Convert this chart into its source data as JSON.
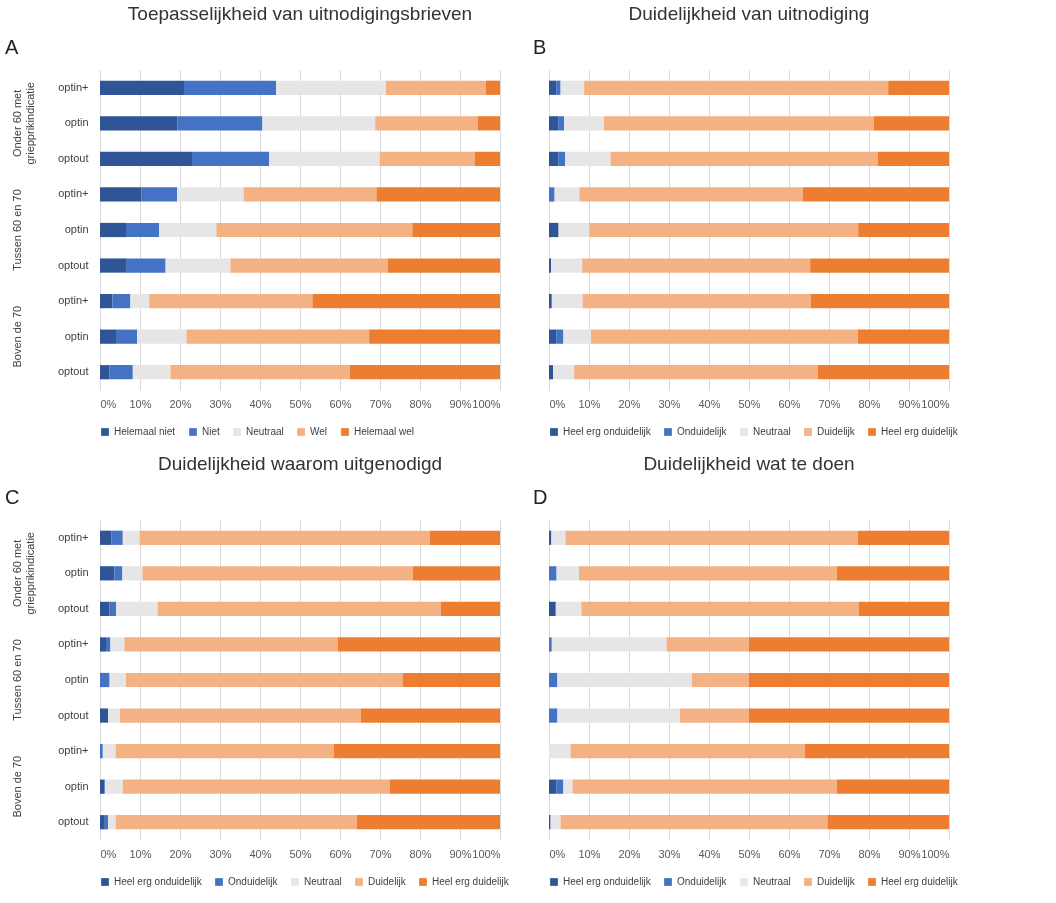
{
  "chart_data": [
    {
      "type": "bar",
      "orientation": "horizontal",
      "stacked": true,
      "title": "Toepasselijkheid van uitnodigingsbrieven",
      "annotations": [
        "A",
        "Onder 60 met griepprikindicatie",
        "Tussen 60 en 70",
        "Boven de 70"
      ],
      "categories": [
        "optin+",
        "optin",
        "optout",
        "optin+",
        "optin",
        "optout",
        "optin+",
        "optin",
        "optout"
      ],
      "series": [
        {
          "name": "Helemaal niet",
          "color": "#2f5597",
          "values": [
            21,
            19.4,
            23,
            10.3,
            6.5,
            6.7,
            3.1,
            4,
            2.4
          ]
        },
        {
          "name": "Niet",
          "color": "#4472c4",
          "values": [
            23,
            21.2,
            19.3,
            9,
            8.3,
            9.7,
            4.5,
            5.3,
            5.8
          ]
        },
        {
          "name": "Neutraal",
          "color": "#e7e6e6",
          "values": [
            27.5,
            28.2,
            27.6,
            16.6,
            14.3,
            16.2,
            4.7,
            12.3,
            9.4
          ]
        },
        {
          "name": "Wel",
          "color": "#f4b183",
          "values": [
            25,
            25.7,
            23.8,
            33.2,
            49,
            39.4,
            40.8,
            45.7,
            44.8
          ]
        },
        {
          "name": "Helemaal wel",
          "color": "#ed7d31",
          "values": [
            3.5,
            5.5,
            6.3,
            30.9,
            21.9,
            28,
            46.9,
            32.7,
            37.6
          ]
        }
      ],
      "xlim": [
        0,
        100
      ],
      "xticks": [
        {
          "value": 0,
          "label": "0%"
        },
        {
          "value": 10,
          "label": "10%"
        },
        {
          "value": 20,
          "label": "20%"
        },
        {
          "value": 30,
          "label": "30%"
        },
        {
          "value": 40,
          "label": "40%"
        },
        {
          "value": 50,
          "label": "50%"
        },
        {
          "value": 60,
          "label": "60%"
        },
        {
          "value": 70,
          "label": "70%"
        },
        {
          "value": 80,
          "label": "80%"
        },
        {
          "value": 90,
          "label": "90%"
        },
        {
          "value": 100,
          "label": "100%"
        }
      ],
      "grid": "x",
      "legend": "bottom"
    },
    {
      "type": "bar",
      "orientation": "horizontal",
      "stacked": true,
      "title": "Duidelijkheid van uitnodiging",
      "annotations": [
        "B"
      ],
      "categories": [
        null,
        null,
        null,
        null,
        null,
        null,
        null,
        null,
        null
      ],
      "series": [
        {
          "name": "Heel erg onduidelijk",
          "color": "#2f5597",
          "values": [
            1.8,
            2.3,
            2.3,
            0,
            2.4,
            0.5,
            0.7,
            1.8,
            1
          ]
        },
        {
          "name": "Onduidelijk",
          "color": "#4472c4",
          "values": [
            1.1,
            1.5,
            1.7,
            1.4,
            0,
            0,
            0,
            1.8,
            0
          ]
        },
        {
          "name": "Neutraal",
          "color": "#e7e6e6",
          "values": [
            5.9,
            9.9,
            11.4,
            6.2,
            7.7,
            7.8,
            7.7,
            6.9,
            5.3
          ]
        },
        {
          "name": "Duidelijk",
          "color": "#f4b183",
          "values": [
            76,
            67.5,
            66.8,
            55.8,
            67.2,
            57,
            57,
            66.7,
            60.9
          ]
        },
        {
          "name": "Heel erg duidelijk",
          "color": "#ed7d31",
          "values": [
            15.2,
            18.8,
            17.8,
            36.6,
            22.7,
            34.7,
            34.6,
            22.8,
            32.8
          ]
        }
      ],
      "xlim": [
        0,
        100
      ],
      "xticks": [
        {
          "value": 0,
          "label": "0%"
        },
        {
          "value": 10,
          "label": "10%"
        },
        {
          "value": 20,
          "label": "20%"
        },
        {
          "value": 30,
          "label": "30%"
        },
        {
          "value": 40,
          "label": "40%"
        },
        {
          "value": 50,
          "label": "50%"
        },
        {
          "value": 60,
          "label": "60%"
        },
        {
          "value": 70,
          "label": "70%"
        },
        {
          "value": 80,
          "label": "80%"
        },
        {
          "value": 90,
          "label": "90%"
        },
        {
          "value": 100,
          "label": "100%"
        }
      ],
      "grid": "x",
      "legend": "bottom",
      "tick_labels": "x"
    },
    {
      "type": "bar",
      "orientation": "horizontal",
      "stacked": true,
      "title": "Duidelijkheid waarom uitgenodigd",
      "annotations": [
        "C",
        "Onder 60 met griepprikindicatie",
        "Tussen 60 en 70",
        "Boven de 70"
      ],
      "categories": [
        "optin+",
        "optin",
        "optout",
        "optin+",
        "optin",
        "optout",
        "optin+",
        "optin",
        "optout"
      ],
      "series": [
        {
          "name": "Heel erg onduidelijk",
          "color": "#2f5597",
          "values": [
            2.9,
            3.6,
            2.3,
            1.5,
            0,
            2,
            0,
            1.2,
            1.2
          ]
        },
        {
          "name": "Onduidelijk",
          "color": "#4472c4",
          "values": [
            2.8,
            2,
            1.7,
            1.1,
            2.4,
            0,
            0.7,
            0,
            0.8
          ]
        },
        {
          "name": "Neutraal",
          "color": "#e7e6e6",
          "values": [
            4.2,
            5,
            10.4,
            3.5,
            4.1,
            3,
            3.2,
            4.5,
            1.9
          ]
        },
        {
          "name": "Duidelijk",
          "color": "#f4b183",
          "values": [
            72.5,
            67.6,
            70.8,
            53.3,
            69.2,
            60.2,
            54.6,
            66.8,
            60.3
          ]
        },
        {
          "name": "Heel erg duidelijk",
          "color": "#ed7d31",
          "values": [
            17.6,
            21.8,
            14.8,
            40.6,
            24.3,
            34.8,
            41.5,
            27.5,
            35.8
          ]
        }
      ],
      "xlim": [
        0,
        100
      ],
      "xticks": [
        {
          "value": 0,
          "label": "0%"
        },
        {
          "value": 10,
          "label": "10%"
        },
        {
          "value": 20,
          "label": "20%"
        },
        {
          "value": 30,
          "label": "30%"
        },
        {
          "value": 40,
          "label": "40%"
        },
        {
          "value": 50,
          "label": "50%"
        },
        {
          "value": 60,
          "label": "60%"
        },
        {
          "value": 70,
          "label": "70%"
        },
        {
          "value": 80,
          "label": "80%"
        },
        {
          "value": 90,
          "label": "90%"
        },
        {
          "value": 100,
          "label": "100%"
        }
      ],
      "grid": "x",
      "legend": "bottom"
    },
    {
      "type": "bar",
      "orientation": "horizontal",
      "stacked": true,
      "title": "Duidelijkheid wat te doen",
      "annotations": [
        "D"
      ],
      "categories": [
        null,
        null,
        null,
        null,
        null,
        null,
        null,
        null,
        null
      ],
      "series": [
        {
          "name": "Heel erg onduidelijk",
          "color": "#2f5597",
          "values": [
            0.6,
            0,
            1.7,
            0,
            0,
            0,
            0,
            1.9,
            0.4
          ]
        },
        {
          "name": "Onduidelijk",
          "color": "#4472c4",
          "values": [
            0,
            1.9,
            0,
            0.7,
            2.1,
            2.1,
            0,
            1.7,
            0
          ]
        },
        {
          "name": "Neutraal",
          "color": "#e7e6e6",
          "values": [
            3.5,
            5.6,
            6.4,
            28.7,
            33.6,
            30.6,
            5.4,
            2.3,
            2.5
          ]
        },
        {
          "name": "Duidelijk",
          "color": "#f4b183",
          "values": [
            73.1,
            64.4,
            69.4,
            20.6,
            14.3,
            17.3,
            58.5,
            66.1,
            66.7
          ]
        },
        {
          "name": "Heel erg duidelijk",
          "color": "#ed7d31",
          "values": [
            22.8,
            28.1,
            22.5,
            50,
            50,
            50,
            36.1,
            28,
            30.4
          ]
        }
      ],
      "xlim": [
        0,
        100
      ],
      "xticks": [
        {
          "value": 0,
          "label": "0%"
        },
        {
          "value": 10,
          "label": "10%"
        },
        {
          "value": 20,
          "label": "20%"
        },
        {
          "value": 30,
          "label": "30%"
        },
        {
          "value": 40,
          "label": "40%"
        },
        {
          "value": 50,
          "label": "50%"
        },
        {
          "value": 60,
          "label": "60%"
        },
        {
          "value": 70,
          "label": "70%"
        },
        {
          "value": 80,
          "label": "80%"
        },
        {
          "value": 90,
          "label": "90%"
        },
        {
          "value": 100,
          "label": "100%"
        }
      ],
      "grid": "x",
      "legend": "bottom",
      "tick_labels": "x"
    }
  ]
}
